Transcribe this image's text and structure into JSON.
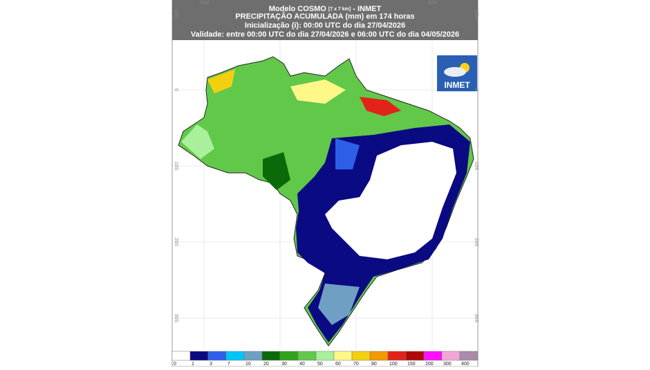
{
  "header": {
    "lines": [
      [
        "Modelo COSMO",
        "[7 x 7 km]",
        "- INMET"
      ],
      "PRECIPITAÇÃO ACUMULADA (mm) em 174 horas",
      "Inicialização (i): 00:00 UTC do dia 27/04/2026",
      "Validade: entre 00:00 UTC do dia 27/04/2026 e 06:00 UTC do dia 04/05/2026"
    ]
  },
  "axes": {
    "longitudes": [
      "70W",
      "40W"
    ],
    "latitudes": [
      "10N",
      "0",
      "10S",
      "20S",
      "30S"
    ]
  },
  "logo": {
    "text": "INMET"
  },
  "legend": {
    "items": [
      {
        "label": "0",
        "color": "#ffffff"
      },
      {
        "label": "1",
        "color": "#0a0a82"
      },
      {
        "label": "3",
        "color": "#2d5fe8"
      },
      {
        "label": "7",
        "color": "#00c6f8"
      },
      {
        "label": "10",
        "color": "#6f9fc2"
      },
      {
        "label": "20",
        "color": "#0a6a0a"
      },
      {
        "label": "30",
        "color": "#2ea41a"
      },
      {
        "label": "40",
        "color": "#62c84a"
      },
      {
        "label": "50",
        "color": "#a8f09a"
      },
      {
        "label": "60",
        "color": "#fff888"
      },
      {
        "label": "70",
        "color": "#f4cf10"
      },
      {
        "label": "80",
        "color": "#f29a00"
      },
      {
        "label": "100",
        "color": "#e2231a"
      },
      {
        "label": "150",
        "color": "#b00808"
      },
      {
        "label": "200",
        "color": "#ff10ff"
      },
      {
        "label": "300",
        "color": "#f2a6d8"
      },
      {
        "label": "400",
        "color": "#a98aa8"
      }
    ]
  }
}
